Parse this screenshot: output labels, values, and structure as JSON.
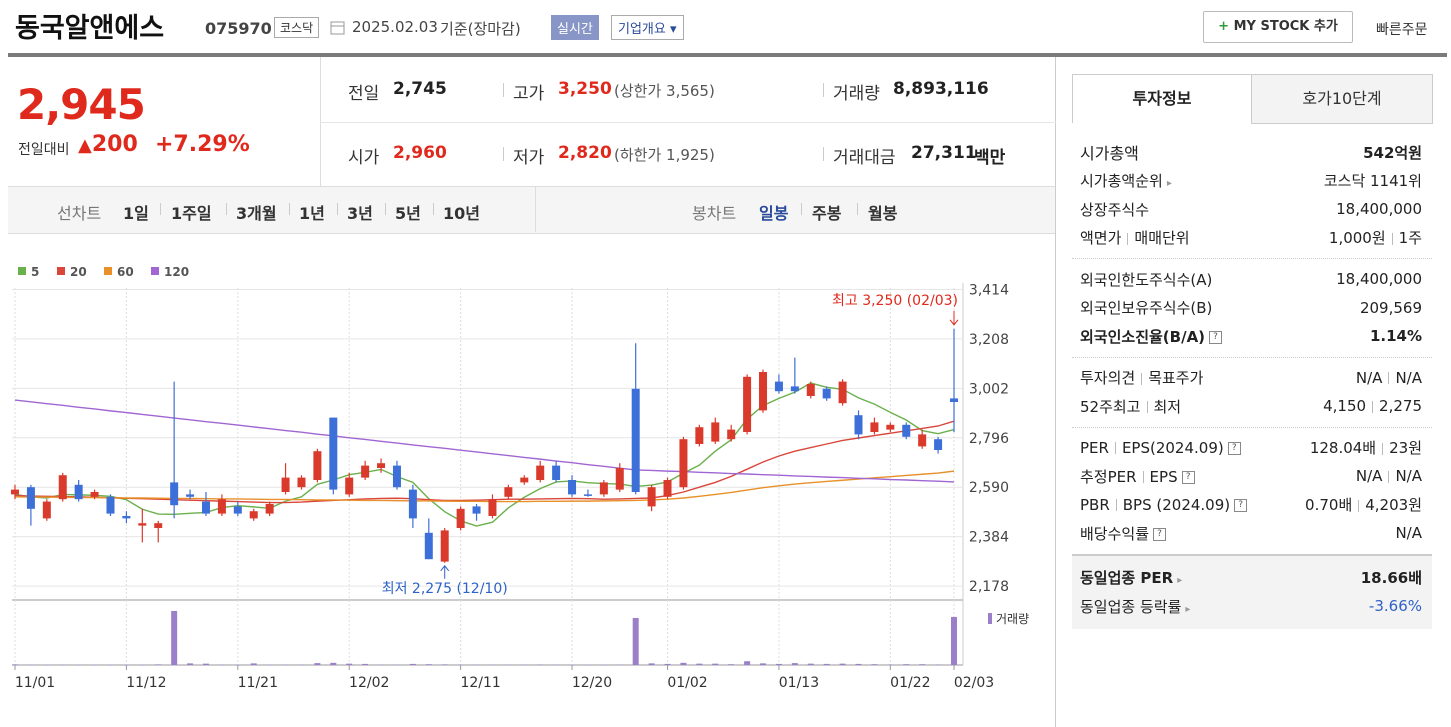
{
  "header": {
    "name": "동국알앤에스",
    "code": "075970",
    "market": "코스닥",
    "date": "2025.02.03",
    "basis": "기준(장마감)",
    "realtime": "실시간",
    "overview": "기업개요",
    "mystock": "MY STOCK 추가",
    "quick_order": "빠른주문"
  },
  "price": {
    "current": "2,945",
    "change_label": "전일대비",
    "change": "200",
    "change_rate": "+7.29%"
  },
  "quote": {
    "rows": [
      [
        [
          "전일",
          "2,745"
        ],
        [
          "고가",
          "3,250",
          "(상한가 3,565)"
        ],
        [
          "거래량",
          "8,893,116"
        ]
      ],
      [
        [
          "시가",
          "2,960"
        ],
        [
          "저가",
          "2,820",
          "(하한가 1,925)"
        ],
        [
          "거래대금",
          "27,311",
          "백만"
        ]
      ]
    ]
  },
  "periods": {
    "line_label": "선차트",
    "line": [
      "1일",
      "1주일",
      "3개월",
      "1년",
      "3년",
      "5년",
      "10년"
    ],
    "candle_label": "봉차트",
    "candle": [
      "일봉",
      "주봉",
      "월봉"
    ]
  },
  "chart_data": {
    "type": "candlestick",
    "categories": [
      "11/01",
      null,
      null,
      null,
      null,
      null,
      null,
      "11/12",
      null,
      null,
      null,
      null,
      null,
      null,
      "11/21",
      null,
      null,
      null,
      null,
      null,
      null,
      "12/02",
      null,
      null,
      null,
      null,
      null,
      null,
      "12/11",
      null,
      null,
      null,
      null,
      null,
      null,
      "12/20",
      null,
      null,
      null,
      null,
      null,
      "01/02",
      null,
      null,
      null,
      null,
      null,
      null,
      "01/13",
      null,
      null,
      null,
      null,
      null,
      null,
      "01/22",
      null,
      null,
      null,
      "02/03"
    ],
    "candles": {
      "up_color": "#d93a2b",
      "down_color": "#3d6fd8",
      "open": [
        2560,
        2590,
        2460,
        2540,
        2600,
        2550,
        2550,
        2470,
        2430,
        2420,
        2610,
        2560,
        2530,
        2480,
        2510,
        2460,
        2480,
        2570,
        2590,
        2620,
        2880,
        2560,
        2630,
        2670,
        2680,
        2580,
        2400,
        2280,
        2420,
        2510,
        2470,
        2550,
        2610,
        2620,
        2680,
        2620,
        2560,
        2560,
        2580,
        3000,
        2510,
        2550,
        2590,
        2770,
        2780,
        2790,
        2820,
        2910,
        3030,
        3010,
        2970,
        3000,
        2940,
        2890,
        2820,
        2830,
        2850,
        2760,
        2790,
        2960
      ],
      "high": [
        2600,
        2600,
        2540,
        2650,
        2620,
        2580,
        2560,
        2490,
        2500,
        2450,
        3030,
        2580,
        2570,
        2560,
        2530,
        2500,
        2530,
        2690,
        2640,
        2750,
        2880,
        2650,
        2700,
        2710,
        2700,
        2600,
        2460,
        2420,
        2510,
        2520,
        2560,
        2600,
        2640,
        2700,
        2700,
        2640,
        2580,
        2620,
        2690,
        3190,
        2600,
        2630,
        2800,
        2850,
        2880,
        2850,
        3060,
        3080,
        3060,
        3130,
        3030,
        3010,
        3040,
        2910,
        2880,
        2860,
        2860,
        2830,
        2800,
        3250
      ],
      "low": [
        2540,
        2430,
        2450,
        2530,
        2530,
        2540,
        2470,
        2440,
        2360,
        2360,
        2460,
        2540,
        2470,
        2470,
        2470,
        2450,
        2470,
        2560,
        2580,
        2610,
        2560,
        2550,
        2620,
        2650,
        2580,
        2420,
        2290,
        2275,
        2410,
        2450,
        2460,
        2540,
        2600,
        2610,
        2610,
        2550,
        2550,
        2550,
        2570,
        2560,
        2490,
        2540,
        2580,
        2760,
        2770,
        2780,
        2810,
        2900,
        2980,
        2980,
        2960,
        2950,
        2930,
        2790,
        2810,
        2820,
        2790,
        2750,
        2730,
        2820
      ],
      "close": [
        2580,
        2500,
        2530,
        2640,
        2540,
        2570,
        2480,
        2460,
        2440,
        2440,
        2515,
        2550,
        2480,
        2540,
        2480,
        2490,
        2520,
        2630,
        2630,
        2740,
        2580,
        2630,
        2680,
        2690,
        2590,
        2460,
        2290,
        2410,
        2500,
        2480,
        2540,
        2590,
        2630,
        2680,
        2620,
        2560,
        2555,
        2610,
        2670,
        2570,
        2590,
        2620,
        2790,
        2840,
        2860,
        2830,
        3050,
        3070,
        2990,
        2990,
        3020,
        2960,
        3030,
        2810,
        2860,
        2850,
        2800,
        2810,
        2745,
        2945
      ]
    },
    "ma": [
      {
        "name": "5",
        "color": "#6ab04c",
        "values": [
          2560,
          2550,
          2545,
          2560,
          2558,
          2556,
          2552,
          2538,
          2498,
          2478,
          2477,
          2481,
          2485,
          2505,
          2513,
          2508,
          2502,
          2532,
          2550,
          2602,
          2620,
          2642,
          2652,
          2664,
          2634,
          2610,
          2542,
          2488,
          2450,
          2428,
          2444,
          2504,
          2548,
          2584,
          2612,
          2616,
          2609,
          2605,
          2603,
          2593,
          2599,
          2612,
          2648,
          2682,
          2740,
          2788,
          2874,
          2930,
          2960,
          2986,
          3024,
          3006,
          2998,
          2962,
          2936,
          2902,
          2870,
          2826,
          2813,
          2830
        ]
      },
      {
        "name": "20",
        "color": "#d9463a",
        "values": [
          2555,
          2553,
          2552,
          2551,
          2550,
          2548,
          2546,
          2544,
          2542,
          2540,
          2538,
          2536,
          2534,
          2532,
          2530,
          2528,
          2526,
          2526,
          2528,
          2532,
          2535,
          2538,
          2541,
          2543,
          2544,
          2542,
          2538,
          2535,
          2535,
          2536,
          2538,
          2540,
          2540,
          2541,
          2542,
          2543,
          2542,
          2540,
          2541,
          2543,
          2545,
          2555,
          2570,
          2590,
          2610,
          2635,
          2665,
          2695,
          2720,
          2740,
          2755,
          2770,
          2785,
          2795,
          2805,
          2815,
          2825,
          2835,
          2845,
          2865
        ]
      },
      {
        "name": "60",
        "color": "#e8902a",
        "values": [
          2550,
          2549,
          2549,
          2548,
          2547,
          2547,
          2546,
          2545,
          2545,
          2544,
          2543,
          2543,
          2542,
          2541,
          2541,
          2540,
          2539,
          2539,
          2538,
          2537,
          2537,
          2536,
          2535,
          2535,
          2534,
          2533,
          2533,
          2532,
          2531,
          2531,
          2530,
          2530,
          2530,
          2531,
          2531,
          2532,
          2532,
          2533,
          2534,
          2535,
          2537,
          2540,
          2545,
          2552,
          2560,
          2568,
          2578,
          2588,
          2596,
          2603,
          2609,
          2614,
          2619,
          2624,
          2629,
          2634,
          2639,
          2644,
          2649,
          2657
        ]
      },
      {
        "name": "120",
        "color": "#a066d3",
        "values": [
          2953,
          2946,
          2938,
          2931,
          2923,
          2916,
          2908,
          2901,
          2893,
          2886,
          2878,
          2871,
          2863,
          2856,
          2849,
          2841,
          2834,
          2826,
          2819,
          2811,
          2804,
          2796,
          2789,
          2781,
          2774,
          2766,
          2759,
          2752,
          2744,
          2737,
          2729,
          2722,
          2714,
          2707,
          2699,
          2692,
          2684,
          2677,
          2669,
          2662,
          2660,
          2657,
          2655,
          2652,
          2650,
          2647,
          2645,
          2642,
          2640,
          2637,
          2635,
          2632,
          2630,
          2627,
          2625,
          2622,
          2620,
          2617,
          2615,
          2612
        ]
      }
    ],
    "volume": {
      "name": "거래량",
      "color": "#9b80c9",
      "values": [
        120000,
        60000,
        40000,
        50000,
        30000,
        30000,
        40000,
        50000,
        40000,
        120000,
        10000000,
        300000,
        250000,
        80000,
        60000,
        300000,
        60000,
        50000,
        70000,
        350000,
        400000,
        250000,
        200000,
        50000,
        60000,
        200000,
        150000,
        120000,
        80000,
        60000,
        80000,
        70000,
        60000,
        100000,
        60000,
        50000,
        40000,
        40000,
        90000,
        8700000,
        300000,
        200000,
        400000,
        250000,
        250000,
        150000,
        700000,
        300000,
        200000,
        350000,
        250000,
        200000,
        250000,
        200000,
        150000,
        100000,
        150000,
        150000,
        100000,
        8893116
      ]
    },
    "volume_lim": [
      0,
      11100000
    ],
    "ylim": [
      2120,
      3420
    ],
    "yticks": [
      {
        "value": 3414,
        "label": "3,414"
      },
      {
        "value": 3208,
        "label": "3,208"
      },
      {
        "value": 3002,
        "label": "3,002"
      },
      {
        "value": 2796,
        "label": "2,796"
      },
      {
        "value": 2590,
        "label": "2,590"
      },
      {
        "value": 2384,
        "label": "2,384"
      },
      {
        "value": 2178,
        "label": "2,178"
      }
    ],
    "grid": true,
    "annotations": {
      "high": "최고 3,250 (02/03)",
      "low": "최저 2,275 (12/10)"
    }
  },
  "info": {
    "tabs": [
      "투자정보",
      "호가10단계"
    ],
    "sections": [
      [
        {
          "label": [
            "시가총액"
          ],
          "value": [
            "542억원"
          ]
        },
        {
          "label": [
            "시가총액순위"
          ],
          "value": [
            "코스닥 1141위"
          ]
        },
        {
          "label": [
            "상장주식수"
          ],
          "value": [
            "18,400,000"
          ]
        },
        {
          "label": [
            "액면가",
            "매매단위"
          ],
          "value": [
            "1,000원",
            "1주"
          ]
        }
      ],
      [
        {
          "label": [
            "외국인한도주식수(A)"
          ],
          "value": [
            "18,400,000"
          ]
        },
        {
          "label": [
            "외국인보유주식수(B)"
          ],
          "value": [
            "209,569"
          ]
        },
        {
          "label": [
            "외국인소진율(B/A)"
          ],
          "value": [
            "1.14%"
          ]
        }
      ],
      [
        {
          "label": [
            "투자의견",
            "목표주가"
          ],
          "value": [
            "N/A",
            "N/A"
          ]
        },
        {
          "label": [
            "52주최고",
            "최저"
          ],
          "value": [
            "4,150",
            "2,275"
          ]
        }
      ],
      [
        {
          "label": [
            "PER",
            "EPS(2024.09)"
          ],
          "value": [
            "128.04배",
            "23원"
          ]
        },
        {
          "label": [
            "추정PER",
            "EPS"
          ],
          "value": [
            "N/A",
            "N/A"
          ]
        },
        {
          "label": [
            "PBR",
            "BPS (2024.09)"
          ],
          "value": [
            "0.70배",
            "4,203원"
          ]
        },
        {
          "label": [
            "배당수익률"
          ],
          "value": [
            "N/A"
          ]
        }
      ],
      [
        {
          "label": [
            "동일업종 PER"
          ],
          "value": [
            "18.66배"
          ]
        },
        {
          "label": [
            "동일업종 등락률"
          ],
          "value": [
            "-3.66%"
          ]
        }
      ]
    ]
  }
}
